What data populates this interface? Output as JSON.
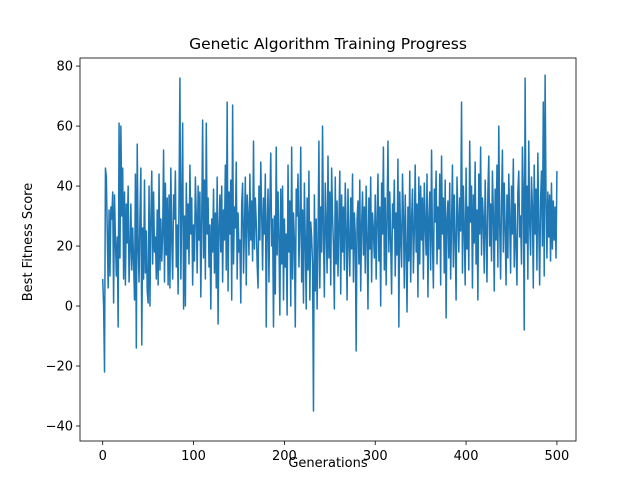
{
  "chart_data": {
    "type": "line",
    "title": "Genetic Algorithm Training Progress",
    "x_label": "Generations",
    "y_label": "Best Fitness Score",
    "xlim": [
      -25,
      521
    ],
    "ylim": [
      -45,
      82.7
    ],
    "xticks": [
      0,
      100,
      200,
      300,
      400,
      500
    ],
    "yticks": [
      {
        "value": -40,
        "label": "−40"
      },
      {
        "value": -20,
        "label": "−20"
      },
      0,
      20,
      40,
      60,
      80
    ],
    "grid": false,
    "x": [
      0,
      1,
      2,
      3,
      4,
      5,
      6,
      7,
      8,
      9,
      10,
      11,
      12,
      13,
      14,
      15,
      16,
      17,
      18,
      19,
      20,
      21,
      22,
      23,
      24,
      25,
      26,
      27,
      28,
      29,
      30,
      31,
      32,
      33,
      34,
      35,
      36,
      37,
      38,
      39,
      40,
      41,
      42,
      43,
      44,
      45,
      46,
      47,
      48,
      49,
      50,
      51,
      52,
      53,
      54,
      55,
      56,
      57,
      58,
      59,
      60,
      61,
      62,
      63,
      64,
      65,
      66,
      67,
      68,
      69,
      70,
      71,
      72,
      73,
      74,
      75,
      76,
      77,
      78,
      79,
      80,
      81,
      82,
      83,
      84,
      85,
      86,
      87,
      88,
      89,
      90,
      91,
      92,
      93,
      94,
      95,
      96,
      97,
      98,
      99,
      100,
      101,
      102,
      103,
      104,
      105,
      106,
      107,
      108,
      109,
      110,
      111,
      112,
      113,
      114,
      115,
      116,
      117,
      118,
      119,
      120,
      121,
      122,
      123,
      124,
      125,
      126,
      127,
      128,
      129,
      130,
      131,
      132,
      133,
      134,
      135,
      136,
      137,
      138,
      139,
      140,
      141,
      142,
      143,
      144,
      145,
      146,
      147,
      148,
      149,
      150,
      151,
      152,
      153,
      154,
      155,
      156,
      157,
      158,
      159,
      160,
      161,
      162,
      163,
      164,
      165,
      166,
      167,
      168,
      169,
      170,
      171,
      172,
      173,
      174,
      175,
      176,
      177,
      178,
      179,
      180,
      181,
      182,
      183,
      184,
      185,
      186,
      187,
      188,
      189,
      190,
      191,
      192,
      193,
      194,
      195,
      196,
      197,
      198,
      199,
      200,
      201,
      202,
      203,
      204,
      205,
      206,
      207,
      208,
      209,
      210,
      211,
      212,
      213,
      214,
      215,
      216,
      217,
      218,
      219,
      220,
      221,
      222,
      223,
      224,
      225,
      226,
      227,
      228,
      229,
      230,
      231,
      232,
      233,
      234,
      235,
      236,
      237,
      238,
      239,
      240,
      241,
      242,
      243,
      244,
      245,
      246,
      247,
      248,
      249,
      250,
      251,
      252,
      253,
      254,
      255,
      256,
      257,
      258,
      259,
      260,
      261,
      262,
      263,
      264,
      265,
      266,
      267,
      268,
      269,
      270,
      271,
      272,
      273,
      274,
      275,
      276,
      277,
      278,
      279,
      280,
      281,
      282,
      283,
      284,
      285,
      286,
      287,
      288,
      289,
      290,
      291,
      292,
      293,
      294,
      295,
      296,
      297,
      298,
      299,
      300,
      301,
      302,
      303,
      304,
      305,
      306,
      307,
      308,
      309,
      310,
      311,
      312,
      313,
      314,
      315,
      316,
      317,
      318,
      319,
      320,
      321,
      322,
      323,
      324,
      325,
      326,
      327,
      328,
      329,
      330,
      331,
      332,
      333,
      334,
      335,
      336,
      337,
      338,
      339,
      340,
      341,
      342,
      343,
      344,
      345,
      346,
      347,
      348,
      349,
      350,
      351,
      352,
      353,
      354,
      355,
      356,
      357,
      358,
      359,
      360,
      361,
      362,
      363,
      364,
      365,
      366,
      367,
      368,
      369,
      370,
      371,
      372,
      373,
      374,
      375,
      376,
      377,
      378,
      379,
      380,
      381,
      382,
      383,
      384,
      385,
      386,
      387,
      388,
      389,
      390,
      391,
      392,
      393,
      394,
      395,
      396,
      397,
      398,
      399,
      400,
      401,
      402,
      403,
      404,
      405,
      406,
      407,
      408,
      409,
      410,
      411,
      412,
      413,
      414,
      415,
      416,
      417,
      418,
      419,
      420,
      421,
      422,
      423,
      424,
      425,
      426,
      427,
      428,
      429,
      430,
      431,
      432,
      433,
      434,
      435,
      436,
      437,
      438,
      439,
      440,
      441,
      442,
      443,
      444,
      445,
      446,
      447,
      448,
      449,
      450,
      451,
      452,
      453,
      454,
      455,
      456,
      457,
      458,
      459,
      460,
      461,
      462,
      463,
      464,
      465,
      466,
      467,
      468,
      469,
      470,
      471,
      472,
      473,
      474,
      475,
      476,
      477,
      478,
      479,
      480,
      481,
      482,
      483,
      484,
      485,
      486,
      487,
      488,
      489,
      490,
      491,
      492,
      493,
      494,
      495,
      496,
      497,
      498,
      499,
      500
    ],
    "series": [
      {
        "color": "#1f77b4",
        "values": [
          9,
          0,
          -22,
          46,
          43,
          25,
          6,
          32,
          10,
          33,
          29,
          38,
          1,
          37,
          22,
          10,
          23,
          -7,
          61,
          16,
          60,
          30,
          46,
          9,
          38,
          7,
          34,
          21,
          40,
          8,
          18,
          34,
          12,
          26,
          15,
          2,
          44,
          -14,
          54,
          20,
          8,
          30,
          46,
          -13,
          26,
          9,
          42,
          11,
          25,
          5,
          1,
          40,
          0,
          29,
          45,
          14,
          38,
          18,
          23,
          9,
          32,
          7,
          44,
          12,
          29,
          15,
          24,
          52,
          8,
          41,
          17,
          36,
          7,
          37,
          6,
          46,
          22,
          9,
          37,
          29,
          45,
          13,
          27,
          4,
          36,
          76,
          9,
          33,
          61,
          -1,
          30,
          0,
          41,
          19,
          34,
          14,
          47,
          24,
          36,
          7,
          27,
          15,
          43,
          30,
          11,
          40,
          22,
          38,
          3,
          29,
          62,
          16,
          42,
          9,
          61,
          24,
          36,
          13,
          27,
          -1,
          29,
          18,
          39,
          11,
          31,
          6,
          43,
          -6,
          26,
          37,
          18,
          40,
          8,
          32,
          22,
          47,
          12,
          68,
          5,
          38,
          24,
          42,
          2,
          67,
          14,
          33,
          26,
          48,
          9,
          31,
          18,
          22,
          1,
          34,
          41,
          11,
          25,
          43,
          7,
          37,
          30,
          17,
          44,
          22,
          35,
          15,
          55,
          19,
          36,
          28,
          14,
          6,
          40,
          22,
          48,
          31,
          12,
          36,
          24,
          44,
          -7,
          28,
          39,
          8,
          34,
          51,
          20,
          29,
          -7,
          30,
          4,
          53,
          17,
          38,
          22,
          -3,
          39,
          14,
          40,
          2,
          29,
          13,
          24,
          -3,
          47,
          18,
          35,
          0,
          53,
          9,
          31,
          22,
          -7,
          39,
          30,
          44,
          13,
          26,
          53,
          8,
          32,
          1,
          41,
          22,
          -1,
          36,
          12,
          45,
          2,
          28,
          23,
          14,
          -35,
          37,
          5,
          29,
          -1,
          21,
          55,
          6,
          33,
          18,
          60,
          24,
          3,
          41,
          27,
          11,
          50,
          16,
          38,
          7,
          46,
          30,
          20,
          -1,
          43,
          14,
          35,
          10,
          28,
          45,
          4,
          37,
          18,
          33,
          12,
          41,
          25,
          2,
          39,
          22,
          10,
          36,
          19,
          44,
          8,
          31,
          24,
          -15,
          29,
          35,
          14,
          42,
          5,
          27,
          38,
          17,
          33,
          11,
          40,
          23,
          -1,
          36,
          19,
          43,
          8,
          31,
          25,
          16,
          37,
          9,
          28,
          44,
          15,
          33,
          0,
          41,
          24,
          53,
          12,
          36,
          7,
          29,
          55,
          18,
          38,
          21,
          4,
          34,
          26,
          42,
          10,
          31,
          17,
          49,
          -7,
          38,
          23,
          13,
          44,
          30,
          6,
          37,
          20,
          -2,
          33,
          15,
          45,
          8,
          29,
          39,
          11,
          25,
          47,
          18,
          34,
          3,
          43,
          14,
          40,
          22,
          36,
          9,
          41,
          27,
          17,
          44,
          3,
          29,
          38,
          12,
          52,
          21,
          6,
          39,
          28,
          45,
          14,
          33,
          19,
          44,
          7,
          50,
          24,
          36,
          11,
          42,
          -4,
          29,
          35,
          16,
          41,
          9,
          27,
          47,
          13,
          37,
          22,
          2,
          43,
          30,
          18,
          36,
          25,
          68,
          11,
          40,
          26,
          7,
          46,
          19,
          33,
          12,
          55,
          28,
          40,
          6,
          37,
          21,
          48,
          14,
          32,
          2,
          44,
          24,
          53,
          17,
          36,
          29,
          11,
          42,
          25,
          8,
          38,
          50,
          20,
          34,
          15,
          45,
          31,
          5,
          39,
          22,
          47,
          13,
          60,
          27,
          9,
          35,
          52,
          18,
          41,
          26,
          7,
          37,
          16,
          44,
          29,
          11,
          40,
          24,
          49,
          13,
          34,
          20,
          7,
          38,
          45,
          23,
          30,
          14,
          53,
          38,
          -8,
          76,
          21,
          40,
          9,
          55,
          28,
          17,
          43,
          33,
          6,
          47,
          24,
          39,
          12,
          51,
          27,
          7,
          35,
          45,
          20,
          68,
          10,
          77,
          36,
          16,
          38,
          23,
          37,
          15,
          41,
          19,
          35,
          22,
          33,
          16,
          45
        ]
      }
    ]
  }
}
